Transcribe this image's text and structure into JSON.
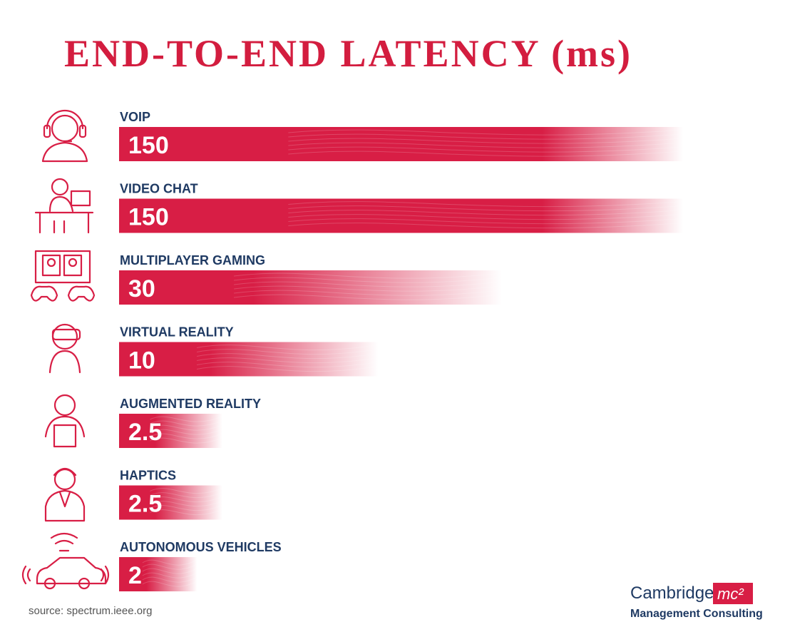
{
  "chart_data": {
    "type": "hbar",
    "title": "END-TO-END LATENCY (ms)",
    "categories": [
      "VOIP",
      "VIDEO CHAT",
      "MULTIPLAYER GAMING",
      "VIRTUAL REALITY",
      "AUGMENTED REALITY",
      "HAPTICS",
      "AUTONOMOUS VEHICLES"
    ],
    "values": [
      150,
      150,
      30,
      10,
      2.5,
      2.5,
      2
    ],
    "color": "#d81e45",
    "xscale": "log",
    "xlim": [
      1,
      150
    ],
    "source": "source: spectrum.ieee.org"
  },
  "logo": {
    "name": "Cambridge",
    "mark": "mc²",
    "tagline": "Management Consulting"
  }
}
